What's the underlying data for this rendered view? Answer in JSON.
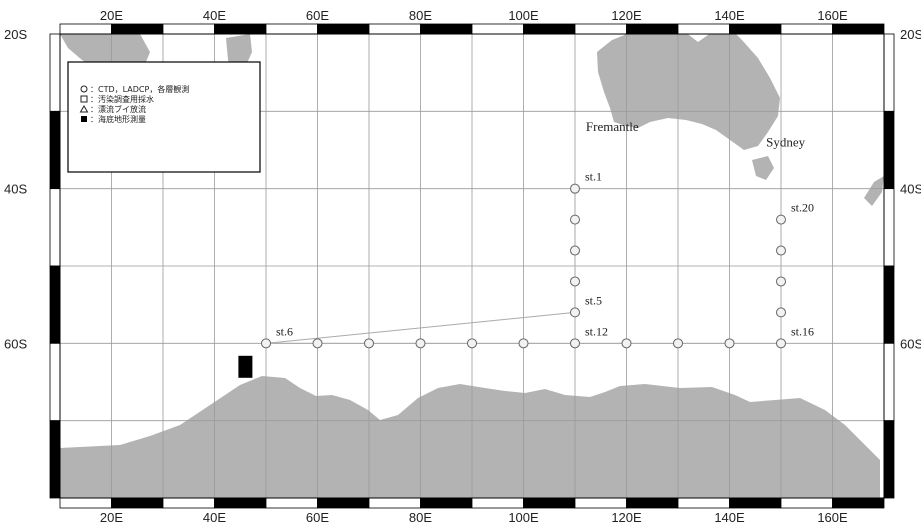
{
  "lon_ticks": [
    {
      "label": "20E",
      "lon": 20
    },
    {
      "label": "40E",
      "lon": 40
    },
    {
      "label": "60E",
      "lon": 60
    },
    {
      "label": "80E",
      "lon": 80
    },
    {
      "label": "100E",
      "lon": 100
    },
    {
      "label": "120E",
      "lon": 120
    },
    {
      "label": "140E",
      "lon": 140
    },
    {
      "label": "160E",
      "lon": 160
    }
  ],
  "lat_ticks_left": [
    {
      "label": "20S",
      "lat": -20
    },
    {
      "label": "40S",
      "lat": -40
    },
    {
      "label": "60S",
      "lat": -60
    }
  ],
  "lat_ticks_right": [
    {
      "label": "20S",
      "lat": -20
    },
    {
      "label": "40S",
      "lat": -40
    },
    {
      "label": "60S",
      "lat": -60
    }
  ],
  "map_extent": {
    "lon_min": 10,
    "lon_max": 170,
    "lat_max": -20,
    "lat_min": -80
  },
  "legend": {
    "items": [
      {
        "symbol": "circle",
        "text": "：CTD，LADCP，各層観測"
      },
      {
        "symbol": "square",
        "text": "：汚染調査用採水"
      },
      {
        "symbol": "triangle",
        "text": "：漂流ブイ放流"
      },
      {
        "symbol": "filled-square",
        "text": "：海底地形測量"
      }
    ]
  },
  "places": [
    {
      "name": "Fremantle",
      "lon": 116,
      "lat": -32
    },
    {
      "name": "Sydney",
      "lon": 151,
      "lat": -34
    }
  ],
  "stations": [
    {
      "label": "st.1",
      "lon": 110,
      "lat": -40
    },
    {
      "lon": 110,
      "lat": -44
    },
    {
      "lon": 110,
      "lat": -48
    },
    {
      "lon": 110,
      "lat": -52
    },
    {
      "label": "st.5",
      "lon": 110,
      "lat": -56
    },
    {
      "label": "st.6",
      "lon": 50,
      "lat": -60
    },
    {
      "lon": 60,
      "lat": -60
    },
    {
      "lon": 70,
      "lat": -60
    },
    {
      "lon": 80,
      "lat": -60
    },
    {
      "lon": 90,
      "lat": -60
    },
    {
      "lon": 100,
      "lat": -60
    },
    {
      "label": "st.12",
      "lon": 110,
      "lat": -60
    },
    {
      "lon": 120,
      "lat": -60
    },
    {
      "lon": 130,
      "lat": -60
    },
    {
      "lon": 140,
      "lat": -60
    },
    {
      "label": "st.16",
      "lon": 150,
      "lat": -60
    },
    {
      "lon": 150,
      "lat": -56
    },
    {
      "lon": 150,
      "lat": -52
    },
    {
      "lon": 150,
      "lat": -48
    },
    {
      "label": "st.20",
      "lon": 150,
      "lat": -44
    }
  ],
  "cruise_track_station_order": [
    "st.5",
    "st.6"
  ],
  "bathymetry_survey": {
    "lon": 46,
    "lat": -62
  },
  "colors": {
    "land": "#b3b3b3",
    "grid": "#9a9a9a",
    "frame": "#000000",
    "station": "#666666",
    "track": "#aaaaaa"
  }
}
